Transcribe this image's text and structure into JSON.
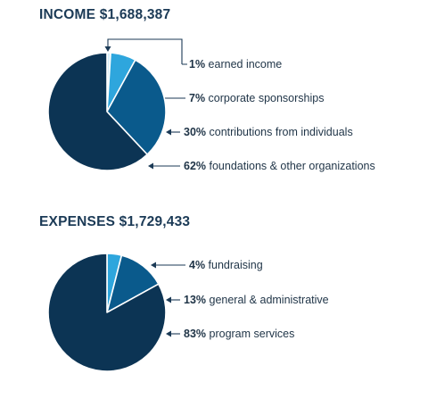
{
  "colors": {
    "darkest": "#0c3454",
    "dark": "#0a5a8c",
    "medium": "#2ea6dd",
    "light": "#d6eef9",
    "leader": "#1b3a56"
  },
  "chart_data": [
    {
      "type": "pie",
      "title": "INCOME $1,688,387",
      "slices": [
        {
          "pct": "1%",
          "label": "earned income",
          "value": 1
        },
        {
          "pct": "7%",
          "label": "corporate sponsorships",
          "value": 7
        },
        {
          "pct": "30%",
          "label": "contributions from individuals",
          "value": 30
        },
        {
          "pct": "62%",
          "label": "foundations & other organizations",
          "value": 62
        }
      ]
    },
    {
      "type": "pie",
      "title": "EXPENSES $1,729,433",
      "slices": [
        {
          "pct": "4%",
          "label": "fundraising",
          "value": 4
        },
        {
          "pct": "13%",
          "label": "general & administrative",
          "value": 13
        },
        {
          "pct": "83%",
          "label": "program services",
          "value": 83
        }
      ]
    }
  ]
}
